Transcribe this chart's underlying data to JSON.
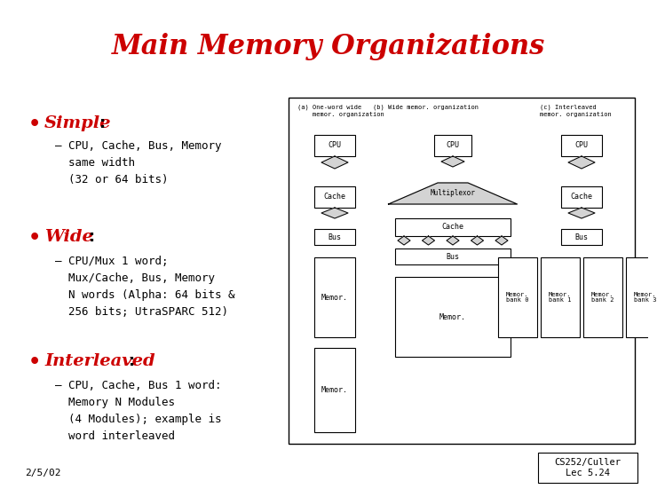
{
  "title": "Main Memory Organizations",
  "title_color": "#cc0000",
  "title_fontsize": 22,
  "bg_color": "#ffffff",
  "bullet_color": "#cc0000",
  "text_color": "#000000",
  "date_text": "2/5/02",
  "credit_text": "CS252/Culler\nLec 5.24",
  "bullet1_label": "Simple",
  "bullet1_colon": ":",
  "bullet1_sub": "– CPU, Cache, Bus, Memory\n  same width\n  (32 or 64 bits)",
  "bullet2_label": "Wide",
  "bullet2_colon": ":",
  "bullet2_sub": "– CPU/Mux 1 word;\n  Mux/Cache, Bus, Memory\n  N words (Alpha: 64 bits &\n  256 bits; UtraSPARC 512)",
  "bullet3_label": "Interleaved",
  "bullet3_colon": ":",
  "bullet3_sub": "– CPU, Cache, Bus 1 word:\n  Memory N Modules\n  (4 Modules); example is\n  word interleaved",
  "header_a": "(a) One-word wide\n    memor. organization",
  "header_b": "(b) Wide memor. organization",
  "header_c": "(c) Interleaved\n    memor. organization",
  "label_cpu": "CPU",
  "label_cache": "Cache",
  "label_bus": "Bus",
  "label_memor": "Memor.",
  "label_multiplexor": "Multiplexor",
  "label_bank0": "Memor.\nbank 0",
  "label_bank1": "Memor.\nbank 1",
  "label_bank2": "Memor.\nbank 2",
  "label_bank3": "Memor.\nbank 3"
}
